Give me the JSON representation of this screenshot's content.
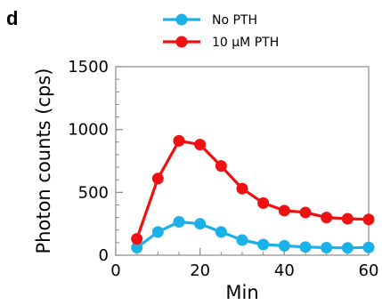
{
  "panel_label": "d",
  "chart_data": {
    "type": "line",
    "xlabel": "Min",
    "ylabel": "Photon counts (cps)",
    "xlim": [
      0,
      60
    ],
    "ylim": [
      0,
      1500
    ],
    "x_ticks": [
      0,
      20,
      40,
      60
    ],
    "y_ticks": [
      0,
      500,
      1000,
      1500
    ],
    "x_minor_step": 5,
    "y_minor_step": 100,
    "grid": false,
    "legend_position": "top-center",
    "x": [
      5,
      10,
      15,
      20,
      25,
      30,
      35,
      40,
      45,
      50,
      55,
      60
    ],
    "series": [
      {
        "name": "No PTH",
        "color": "#1ab0e8",
        "values": [
          60,
          185,
          265,
          250,
          185,
          120,
          85,
          75,
          65,
          60,
          58,
          62
        ]
      },
      {
        "name": "10 µM PTH",
        "color": "#ee1111",
        "values": [
          130,
          610,
          910,
          880,
          710,
          530,
          415,
          355,
          340,
          300,
          290,
          285
        ]
      }
    ]
  }
}
